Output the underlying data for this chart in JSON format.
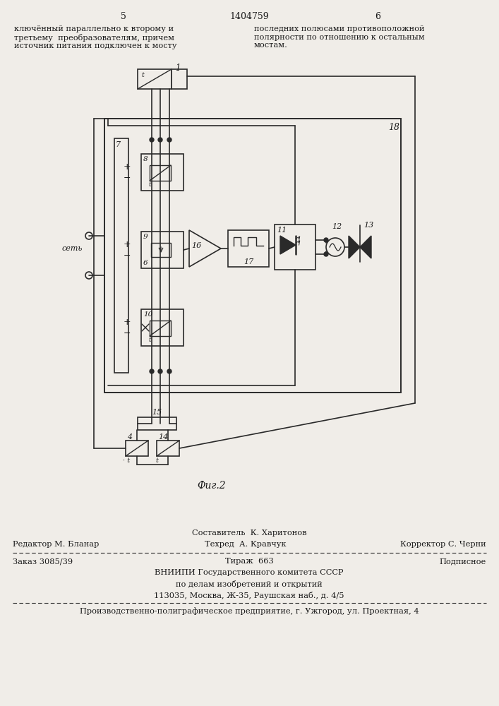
{
  "page_number_left": "5",
  "patent_number": "1404759",
  "page_number_right": "6",
  "text_left": "ключённый параллельно к второму и\nтретьему  преобразователям, причем\nисточник питания подключен к мосту",
  "text_right": "последних полюсами противоположной\nполярности по отношению к остальным\nмостам.",
  "fig_label": "Фиг.2",
  "footer_line1_center": "Составитель  К. Харитонов",
  "footer_line2_left": "Редактор М. Бланар",
  "footer_line2_center": "Техред  А. Кравчук",
  "footer_line2_right": "Корректор С. Черни",
  "footer_line3_left": "Заказ 3085/39",
  "footer_line3_center": "Тираж  663",
  "footer_line3_right": "Подписное",
  "footer_line4": "ВНИИПИ Государственного комитета СССР",
  "footer_line5": "по делам изобретений и открытий",
  "footer_line6": "113035, Москва, Ж-35, Раушская наб., д. 4/5",
  "footer_last": "Производственно-полиграфическое предприятие, г. Ужгород, ул. Проектная, 4",
  "bg_color": "#f0ede8",
  "line_color": "#2a2a2a",
  "text_color": "#1a1a1a"
}
